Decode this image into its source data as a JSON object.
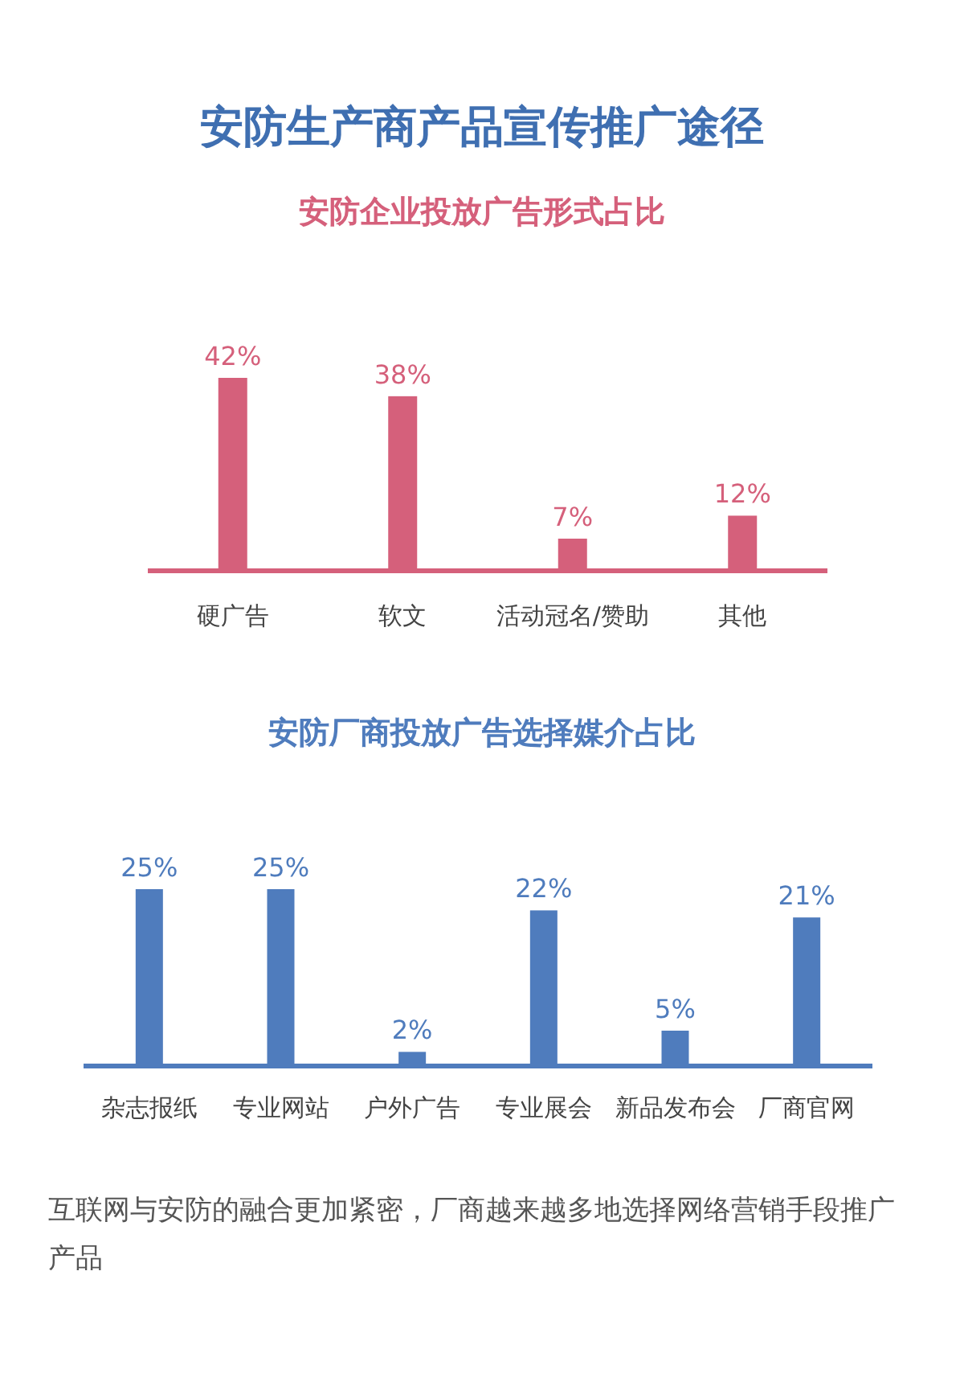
{
  "chart_data": [
    {
      "type": "bar",
      "title": "安防生产商产品宣传推广途径",
      "subtitle": "安防企业投放广告形式占比",
      "categories": [
        "硬广告",
        "软文",
        "活动冠名/赞助",
        "其他"
      ],
      "values": [
        42,
        38,
        7,
        12
      ],
      "value_labels": [
        "42%",
        "38%",
        "7%",
        "12%"
      ],
      "color": "#d5607b"
    },
    {
      "type": "bar",
      "subtitle": "安防厂商投放广告选择媒介占比",
      "categories": [
        "杂志报纸",
        "专业网站",
        "户外广告",
        "专业展会",
        "新品发布会",
        "厂商官网"
      ],
      "values": [
        25,
        25,
        2,
        22,
        5,
        21
      ],
      "value_labels": [
        "25%",
        "25%",
        "2%",
        "22%",
        "5%",
        "21%"
      ],
      "color": "#4f7cbd",
      "annotations": [
        "互联网与安防的融合更加紧密，厂商越来越多地选择网络营销手段推广产品"
      ]
    }
  ]
}
